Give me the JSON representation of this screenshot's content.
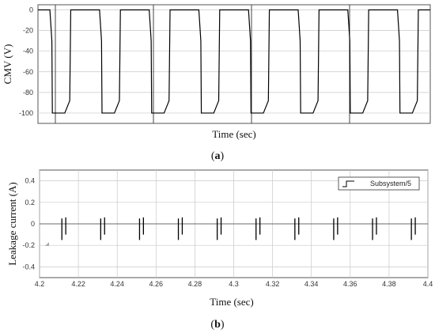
{
  "figure": {
    "caption_a": {
      "open": "(",
      "letter": "a",
      "close": ")"
    },
    "caption_b": {
      "open": "(",
      "letter": "b",
      "close": ")"
    }
  },
  "colors": {
    "plot_bg": "#ffffff",
    "frame": "#555555",
    "grid": "#c8c8c8",
    "signal": "#000000"
  },
  "chart_data": [
    {
      "id": "a",
      "type": "line",
      "title": "",
      "xlabel": "Time (sec)",
      "ylabel": "CMV (V)",
      "ylim": [
        -110,
        5
      ],
      "yticks": [
        0,
        -20,
        -40,
        -60,
        -80,
        -100
      ],
      "ytick_labels": [
        "0",
        "-20",
        "-40",
        "-60",
        "-80",
        "-100"
      ],
      "xticks_visible": false,
      "grid": true,
      "series": [
        {
          "waveform": "trapezoidal square wave",
          "low_value": -100,
          "high_value": 0,
          "periods_shown": 8,
          "note_vertical_markers_count": 4
        }
      ]
    },
    {
      "id": "b",
      "type": "line",
      "title": "",
      "xlabel": "Time (sec)",
      "ylabel": "Leakage current (A)",
      "xlim": [
        4.2,
        4.4
      ],
      "ylim": [
        -0.5,
        0.5
      ],
      "xticks": [
        4.2,
        4.22,
        4.24,
        4.26,
        4.28,
        4.3,
        4.32,
        4.34,
        4.36,
        4.38,
        4.4
      ],
      "xtick_labels": [
        "4.2",
        "4.22",
        "4.24",
        "4.26",
        "4.28",
        "4.3",
        "4.32",
        "4.34",
        "4.36",
        "4.38",
        "4.4"
      ],
      "yticks": [
        0.4,
        0.2,
        0,
        -0.2,
        -0.4
      ],
      "ytick_labels": [
        "0.4",
        "0.2",
        "0",
        "-0.2",
        "-0.4"
      ],
      "grid": true,
      "legend": {
        "position": "top-right",
        "entries": [
          "Subsystem/5"
        ]
      },
      "series": [
        {
          "name": "Subsystem/5",
          "spikes": [
            {
              "x": 4.2115,
              "ymin": -0.15,
              "ymax": 0.05
            },
            {
              "x": 4.2135,
              "ymin": -0.1,
              "ymax": 0.06
            },
            {
              "x": 4.2315,
              "ymin": -0.15,
              "ymax": 0.05
            },
            {
              "x": 4.2335,
              "ymin": -0.1,
              "ymax": 0.06
            },
            {
              "x": 4.2515,
              "ymin": -0.15,
              "ymax": 0.05
            },
            {
              "x": 4.2535,
              "ymin": -0.1,
              "ymax": 0.06
            },
            {
              "x": 4.2715,
              "ymin": -0.15,
              "ymax": 0.05
            },
            {
              "x": 4.2735,
              "ymin": -0.1,
              "ymax": 0.06
            },
            {
              "x": 4.2915,
              "ymin": -0.15,
              "ymax": 0.05
            },
            {
              "x": 4.2935,
              "ymin": -0.1,
              "ymax": 0.06
            },
            {
              "x": 4.3115,
              "ymin": -0.15,
              "ymax": 0.05
            },
            {
              "x": 4.3135,
              "ymin": -0.1,
              "ymax": 0.06
            },
            {
              "x": 4.3315,
              "ymin": -0.15,
              "ymax": 0.05
            },
            {
              "x": 4.3335,
              "ymin": -0.1,
              "ymax": 0.06
            },
            {
              "x": 4.3515,
              "ymin": -0.15,
              "ymax": 0.05
            },
            {
              "x": 4.3535,
              "ymin": -0.1,
              "ymax": 0.06
            },
            {
              "x": 4.3715,
              "ymin": -0.15,
              "ymax": 0.05
            },
            {
              "x": 4.3735,
              "ymin": -0.1,
              "ymax": 0.06
            },
            {
              "x": 4.3915,
              "ymin": -0.15,
              "ymax": 0.05
            },
            {
              "x": 4.3935,
              "ymin": -0.1,
              "ymax": 0.06
            }
          ]
        }
      ]
    }
  ]
}
